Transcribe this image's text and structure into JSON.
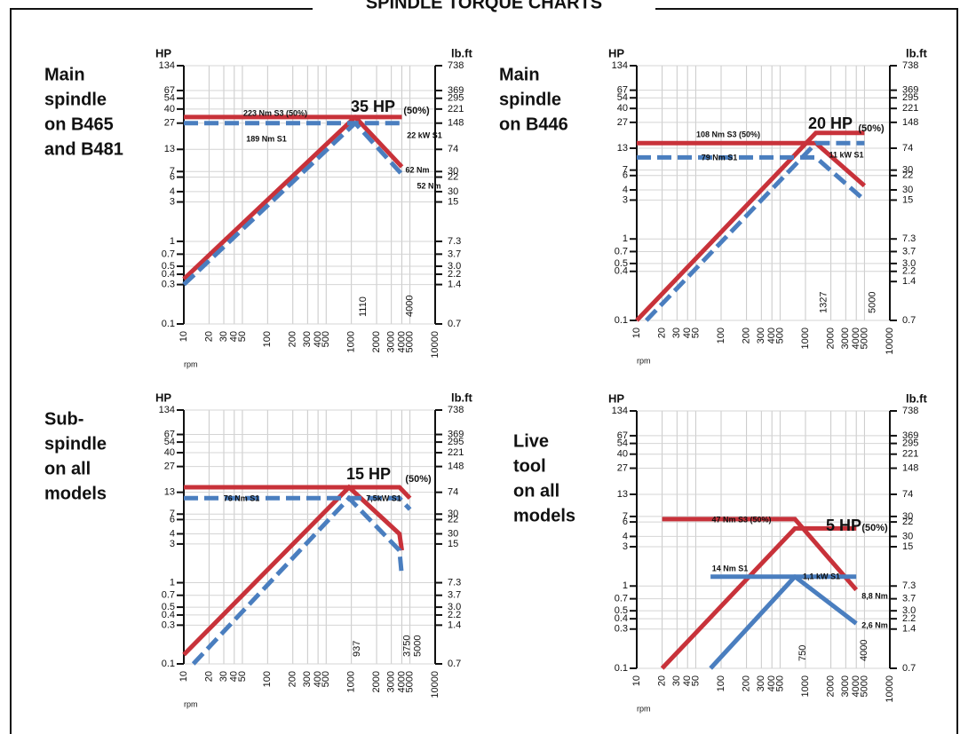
{
  "title": "SPINDLE TORQUE CHARTS",
  "chart_data": [
    {
      "type": "line",
      "title_lines": [
        "Main",
        "spindle",
        "on B465",
        "and B481"
      ],
      "power_label": "35 HP",
      "power_note": "(50%)",
      "y_label": "HP",
      "y2_label": "lb.ft",
      "x_label": "rpm",
      "xscale": "log",
      "yscale": "log",
      "grid": true,
      "xlim": [
        10,
        10000
      ],
      "ylim": [
        0.1,
        134
      ],
      "xticks": [
        10,
        20,
        30,
        40,
        50,
        100,
        200,
        300,
        400,
        500,
        1000,
        2000,
        3000,
        4000,
        5000,
        10000
      ],
      "yticks": [
        0.1,
        0.3,
        0.4,
        0.5,
        0.7,
        1,
        3,
        4,
        6,
        7,
        13,
        27,
        40,
        54,
        67,
        134
      ],
      "y2ticks": [
        {
          "value": 0.1,
          "label": "0.7"
        },
        {
          "value": 0.3,
          "label": "1.4"
        },
        {
          "value": 0.4,
          "label": "2.2"
        },
        {
          "value": 0.5,
          "label": "3.0"
        },
        {
          "value": 0.7,
          "label": "3.7"
        },
        {
          "value": 1,
          "label": "7.3"
        },
        {
          "value": 3,
          "label": "15"
        },
        {
          "value": 4,
          "label": "30"
        },
        {
          "value": 6,
          "label": "22"
        },
        {
          "value": 7,
          "label": "30"
        },
        {
          "value": 13,
          "label": "74"
        },
        {
          "value": 27,
          "label": "148"
        },
        {
          "value": 40,
          "label": "221"
        },
        {
          "value": 54,
          "label": "295"
        },
        {
          "value": 67,
          "label": "369"
        },
        {
          "value": 134,
          "label": "738"
        }
      ],
      "speed_markers": [
        1110,
        4000
      ],
      "annotations": [
        "223 Nm S3 (50%)",
        "189 Nm S1",
        "22 kW S1",
        "62 Nm",
        "52 Nm"
      ],
      "series": [
        {
          "color": "#c8323a",
          "dashed": false,
          "x": [
            10,
            1110,
            4000
          ],
          "values": [
            32,
            32,
            8
          ]
        },
        {
          "color": "#c8323a",
          "dashed": false,
          "x": [
            10,
            1110,
            4000
          ],
          "values": [
            0.35,
            32,
            32
          ]
        },
        {
          "color": "#4a7ebf",
          "dashed": true,
          "x": [
            10,
            1110,
            4000
          ],
          "values": [
            27,
            27,
            6.5
          ]
        },
        {
          "color": "#4a7ebf",
          "dashed": true,
          "x": [
            10,
            1110,
            4000
          ],
          "values": [
            0.3,
            27,
            27
          ]
        }
      ]
    },
    {
      "type": "line",
      "title_lines": [
        "Main",
        "spindle",
        "on B446"
      ],
      "power_label": "20 HP",
      "power_note": "(50%)",
      "y_label": "HP",
      "y2_label": "lb.ft",
      "x_label": "rpm",
      "xscale": "log",
      "yscale": "log",
      "grid": true,
      "xlim": [
        10,
        10000
      ],
      "ylim": [
        0.1,
        134
      ],
      "xticks": [
        10,
        20,
        30,
        40,
        50,
        100,
        200,
        300,
        400,
        500,
        1000,
        2000,
        3000,
        4000,
        5000,
        10000
      ],
      "yticks": [
        0.1,
        0.4,
        0.5,
        0.7,
        1,
        3,
        4,
        6,
        7,
        13,
        27,
        40,
        54,
        67,
        134
      ],
      "y2ticks": [
        {
          "value": 0.1,
          "label": "0.7"
        },
        {
          "value": 0.3,
          "label": "1.4"
        },
        {
          "value": 0.4,
          "label": "2.2"
        },
        {
          "value": 0.5,
          "label": "3.0"
        },
        {
          "value": 0.7,
          "label": "3.7"
        },
        {
          "value": 1,
          "label": "7.3"
        },
        {
          "value": 3,
          "label": "15"
        },
        {
          "value": 4,
          "label": "30"
        },
        {
          "value": 6,
          "label": "22"
        },
        {
          "value": 7,
          "label": "30"
        },
        {
          "value": 13,
          "label": "74"
        },
        {
          "value": 27,
          "label": "148"
        },
        {
          "value": 40,
          "label": "221"
        },
        {
          "value": 54,
          "label": "295"
        },
        {
          "value": 67,
          "label": "369"
        },
        {
          "value": 134,
          "label": "738"
        }
      ],
      "speed_markers": [
        1327,
        5000
      ],
      "annotations": [
        "108 Nm S3 (50%)",
        "79 Nm S1",
        "11 kW S1"
      ],
      "series": [
        {
          "color": "#c8323a",
          "dashed": false,
          "x": [
            10,
            1327,
            5000
          ],
          "values": [
            15,
            15,
            4.5
          ]
        },
        {
          "color": "#c8323a",
          "dashed": false,
          "x": [
            10,
            1327,
            5000
          ],
          "values": [
            0.1,
            20,
            20
          ]
        },
        {
          "color": "#4a7ebf",
          "dashed": true,
          "x": [
            10,
            1327,
            5000
          ],
          "values": [
            10,
            10,
            3
          ]
        },
        {
          "color": "#4a7ebf",
          "dashed": true,
          "x": [
            13,
            1327,
            5000
          ],
          "values": [
            0.1,
            15,
            15
          ]
        }
      ]
    },
    {
      "type": "line",
      "title_lines": [
        "Sub-",
        "spindle",
        "on all",
        "models"
      ],
      "power_label": "15 HP",
      "power_note": "(50%)",
      "y_label": "HP",
      "y2_label": "lb.ft",
      "x_label": "rpm",
      "xscale": "log",
      "yscale": "log",
      "grid": true,
      "xlim": [
        10,
        10000
      ],
      "ylim": [
        0.1,
        134
      ],
      "xticks": [
        10,
        20,
        30,
        40,
        50,
        100,
        200,
        300,
        400,
        500,
        1000,
        2000,
        3000,
        4000,
        5000,
        10000
      ],
      "yticks": [
        0.1,
        0.3,
        0.4,
        0.5,
        0.7,
        1,
        3,
        4,
        6,
        7,
        13,
        27,
        40,
        54,
        67,
        134
      ],
      "y2ticks": [
        {
          "value": 0.1,
          "label": "0.7"
        },
        {
          "value": 0.3,
          "label": "1.4"
        },
        {
          "value": 0.4,
          "label": "2.2"
        },
        {
          "value": 0.5,
          "label": "3.0"
        },
        {
          "value": 0.7,
          "label": "3.7"
        },
        {
          "value": 1,
          "label": "7.3"
        },
        {
          "value": 3,
          "label": "15"
        },
        {
          "value": 4,
          "label": "30"
        },
        {
          "value": 6,
          "label": "22"
        },
        {
          "value": 7,
          "label": "30"
        },
        {
          "value": 13,
          "label": "74"
        },
        {
          "value": 27,
          "label": "148"
        },
        {
          "value": 40,
          "label": "221"
        },
        {
          "value": 54,
          "label": "295"
        },
        {
          "value": 67,
          "label": "369"
        },
        {
          "value": 134,
          "label": "738"
        }
      ],
      "speed_markers": [
        937,
        3750,
        5000
      ],
      "annotations": [
        "76 Nm S1",
        "7,5kW S1"
      ],
      "series": [
        {
          "color": "#c8323a",
          "dashed": false,
          "x": [
            10,
            3750,
            5000
          ],
          "values": [
            15,
            15,
            11
          ]
        },
        {
          "color": "#c8323a",
          "dashed": false,
          "x": [
            10,
            937,
            3750,
            4000
          ],
          "values": [
            0.13,
            15,
            4,
            2.5
          ]
        },
        {
          "color": "#4a7ebf",
          "dashed": true,
          "x": [
            10,
            3750,
            5000
          ],
          "values": [
            11,
            11,
            8
          ]
        },
        {
          "color": "#4a7ebf",
          "dashed": true,
          "x": [
            13,
            937,
            3750,
            4000
          ],
          "values": [
            0.1,
            11,
            2.5,
            1.2
          ]
        }
      ]
    },
    {
      "type": "line",
      "title_lines": [
        "Live",
        "tool",
        "on all",
        "models"
      ],
      "power_label": "5 HP",
      "power_note": "(50%)",
      "y_label": "HP",
      "y2_label": "lb.ft",
      "x_label": "rpm",
      "xscale": "log",
      "yscale": "log",
      "grid": true,
      "xlim": [
        10,
        10000
      ],
      "ylim": [
        0.1,
        134
      ],
      "xticks": [
        10,
        20,
        30,
        40,
        50,
        100,
        200,
        300,
        400,
        500,
        1000,
        2000,
        3000,
        4000,
        5000,
        10000
      ],
      "yticks": [
        0.1,
        0.3,
        0.4,
        0.5,
        0.7,
        1,
        3,
        4,
        6,
        7,
        13,
        27,
        40,
        54,
        67,
        134
      ],
      "y2ticks": [
        {
          "value": 0.1,
          "label": "0.7"
        },
        {
          "value": 0.3,
          "label": "1.4"
        },
        {
          "value": 0.4,
          "label": "2.2"
        },
        {
          "value": 0.5,
          "label": "3.0"
        },
        {
          "value": 0.7,
          "label": "3.7"
        },
        {
          "value": 1,
          "label": "7.3"
        },
        {
          "value": 3,
          "label": "15"
        },
        {
          "value": 4,
          "label": "30"
        },
        {
          "value": 6,
          "label": "22"
        },
        {
          "value": 7,
          "label": "30"
        },
        {
          "value": 13,
          "label": "74"
        },
        {
          "value": 27,
          "label": "148"
        },
        {
          "value": 40,
          "label": "221"
        },
        {
          "value": 54,
          "label": "295"
        },
        {
          "value": 67,
          "label": "369"
        },
        {
          "value": 134,
          "label": "738"
        }
      ],
      "speed_markers": [
        750,
        4000
      ],
      "annotations": [
        "47 Nm S3 (50%)",
        "14 Nm S1",
        "1,1 kW S1",
        "8,8 Nm",
        "2,6 Nm"
      ],
      "series": [
        {
          "color": "#c8323a",
          "dashed": false,
          "x": [
            20,
            750,
            4000
          ],
          "values": [
            6.5,
            6.5,
            0.9
          ]
        },
        {
          "color": "#c8323a",
          "dashed": false,
          "x": [
            20,
            750,
            4000
          ],
          "values": [
            0.1,
            5,
            5
          ]
        },
        {
          "color": "#4a7ebf",
          "dashed": false,
          "x": [
            75,
            750,
            4000
          ],
          "values": [
            1.3,
            1.3,
            0.35
          ]
        },
        {
          "color": "#4a7ebf",
          "dashed": false,
          "x": [
            75,
            750,
            4000
          ],
          "values": [
            0.1,
            1.3,
            1.3
          ]
        }
      ]
    }
  ]
}
